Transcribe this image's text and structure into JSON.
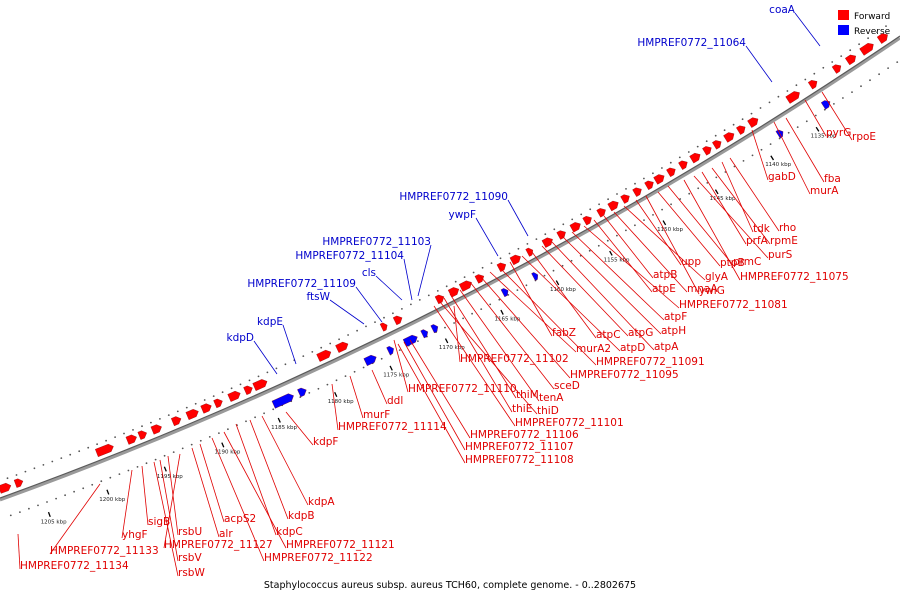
{
  "caption": "Staphylococcus aureus subsp. aureus TCH60, complete genome. - 0..2802675",
  "legend": {
    "forward_label": "Forward",
    "reverse_label": "Reverse",
    "forward_color": "#ff0000",
    "reverse_color": "#0000ff"
  },
  "colors": {
    "forward": "#ff0000",
    "reverse": "#0000ff",
    "forward_text": "#e00000",
    "reverse_text": "#0000cc"
  },
  "ticks": [
    "1135 kbp",
    "1140 kbp",
    "1145 kbp",
    "1150 kbp",
    "1155 kbp",
    "1160 kbp",
    "1165 kbp",
    "1170 kbp",
    "1175 kbp",
    "1180 kbp",
    "1185 kbp",
    "1190 kbp",
    "1195 kbp",
    "1200 kbp",
    "1205 kbp"
  ],
  "reverse_genes": [
    "coaA",
    "HMPREF0772_11064",
    "HMPREF0772_11090",
    "ywpF",
    "HMPREF0772_11103",
    "HMPREF0772_11104",
    "cls",
    "HMPREF0772_11109",
    "ftsW",
    "kdpE",
    "kdpD"
  ],
  "forward_genes": [
    "pyrG",
    "rpoE",
    "fba",
    "murA",
    "gabD",
    "rho",
    "tdk",
    "rpmE",
    "prfA",
    "purS",
    "HMPREF0772_11075",
    "prmC",
    "ptpB",
    "ywlG",
    "upp",
    "glyA",
    "mnaA",
    "atpB",
    "atpE",
    "HMPREF0772_11081",
    "atpF",
    "atpH",
    "atpA",
    "atpG",
    "atpC",
    "atpD",
    "fabZ",
    "HMPREF0772_11091",
    "murA2",
    "HMPREF0772_11095",
    "HMPREF0772_11102",
    "sceD",
    "tenA",
    "thiM",
    "thiE",
    "thiD",
    "HMPREF0772_11101",
    "HMPREF0772_11110",
    "HMPREF0772_11106",
    "HMPREF0772_11107",
    "HMPREF0772_11108",
    "ddl",
    "murF",
    "HMPREF0772_11114",
    "kdpF",
    "kdpA",
    "kdpB",
    "kdpC",
    "HMPREF0772_11121",
    "HMPREF0772_11122",
    "acpS2",
    "alr",
    "HMPREF0772_11127",
    "rsbU",
    "rsbV",
    "rsbW",
    "sigB",
    "yhgF",
    "HMPREF0772_11133",
    "HMPREF0772_11134"
  ]
}
